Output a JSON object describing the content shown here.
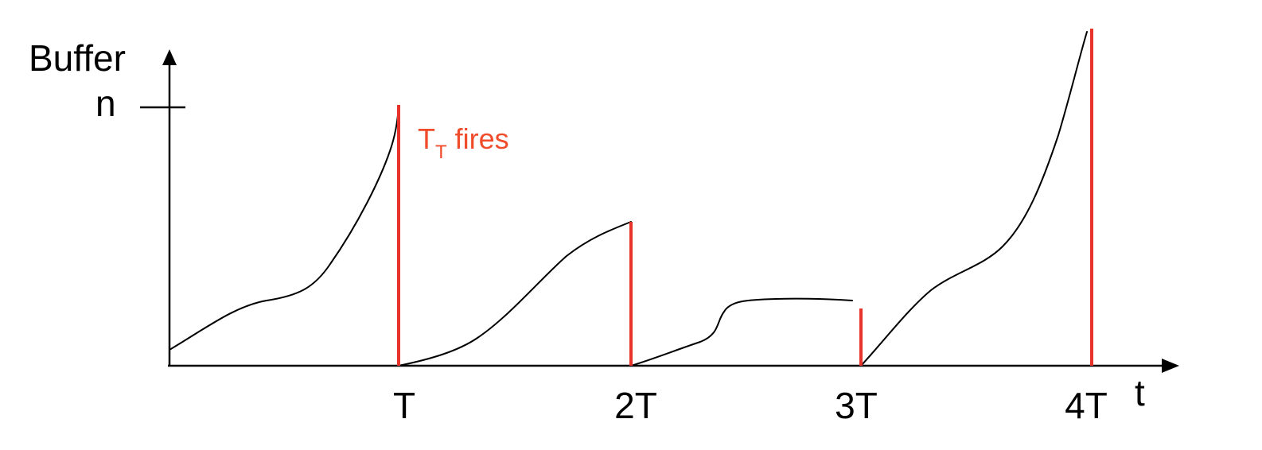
{
  "axes": {
    "y_label": "Buffer",
    "x_label": "t",
    "y_tick_label": "n"
  },
  "x_ticks": [
    "T",
    "2T",
    "3T",
    "4T"
  ],
  "annotation": {
    "main": "T",
    "subscript": "T",
    "suffix": " fires"
  },
  "colors": {
    "axes": "#000000",
    "curve": "#000000",
    "reset_line": "#e8332a",
    "annotation": "#f04b2a"
  }
}
